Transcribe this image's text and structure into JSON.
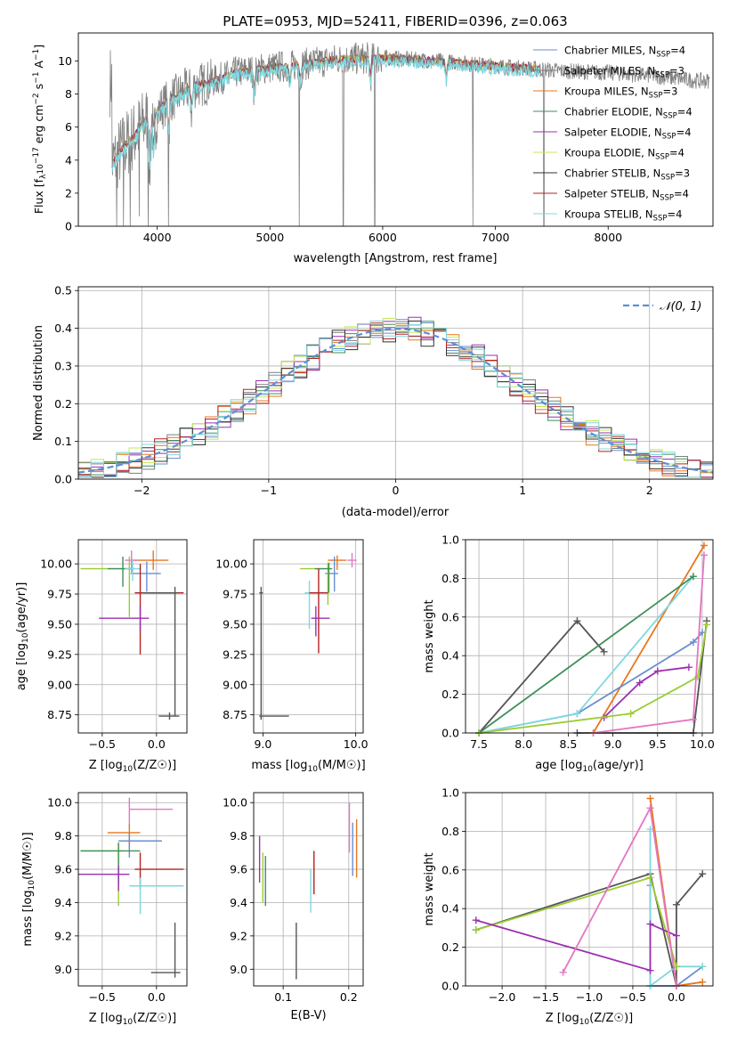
{
  "chart_data": [
    {
      "type": "line",
      "panel": "spectrum",
      "title": "PLATE=0953, MJD=52411, FIBERID=0396, z=0.063",
      "xlabel": "wavelength [Angstrom, rest frame]",
      "ylabel": "Flux [fλ10⁻¹⁷ erg cm⁻² s⁻¹ A⁻¹]",
      "xlim": [
        3300,
        8930
      ],
      "ylim": [
        0,
        11.7
      ],
      "xticks": [
        4000,
        5000,
        6000,
        7000,
        8000
      ],
      "yticks": [
        0,
        2,
        4,
        6,
        8,
        10
      ],
      "legend_position": "right",
      "legend": [
        {
          "label": "Chabrier MILES, N",
          "sub": "SSP",
          "suffix": "=4",
          "color": "#6a8fcf"
        },
        {
          "label": "Salpeter MILES, N",
          "sub": "SSP",
          "suffix": "=3",
          "color": "#7f7f7f"
        },
        {
          "label": "Kroupa MILES, N",
          "sub": "SSP",
          "suffix": "=3",
          "color": "#e8771d"
        },
        {
          "label": "Chabrier ELODIE, N",
          "sub": "SSP",
          "suffix": "=4",
          "color": "#3f8f5a"
        },
        {
          "label": "Salpeter ELODIE, N",
          "sub": "SSP",
          "suffix": "=4",
          "color": "#9b30b0"
        },
        {
          "label": "Kroupa ELODIE, N",
          "sub": "SSP",
          "suffix": "=4",
          "color": "#c6e85a"
        },
        {
          "label": "Chabrier STELIB, N",
          "sub": "SSP",
          "suffix": "=3",
          "color": "#333333"
        },
        {
          "label": "Salpeter STELIB, N",
          "sub": "SSP",
          "suffix": "=4",
          "color": "#b22222"
        },
        {
          "label": "Kroupa STELIB, N",
          "sub": "SSP",
          "suffix": "=4",
          "color": "#7fd8e0"
        }
      ],
      "continuum": {
        "x": [
          3600,
          3700,
          3800,
          3900,
          4000,
          4100,
          4300,
          4500,
          4700,
          5000,
          5300,
          5600,
          6000,
          6500,
          7000,
          7400,
          7600,
          8000,
          8400,
          8800
        ],
        "y": [
          3.8,
          4.8,
          5.5,
          6.4,
          6.9,
          7.6,
          8.4,
          8.8,
          9.3,
          9.6,
          9.8,
          10.1,
          10.2,
          10.0,
          9.7,
          9.5,
          9.4,
          9.3,
          9.1,
          8.8
        ]
      },
      "models_end_wavelength": 7400
    },
    {
      "type": "line",
      "panel": "residual-histogram",
      "xlabel": "(data-model)/error",
      "ylabel": "Normed distribution",
      "xlim": [
        -2.5,
        2.5
      ],
      "ylim": [
        0,
        0.51
      ],
      "xticks": [
        -2,
        -1,
        0,
        1,
        2
      ],
      "yticks": [
        0.0,
        0.1,
        0.2,
        0.3,
        0.4,
        0.5
      ],
      "bin_width": 0.1,
      "grid": true,
      "legend_position": "top-right",
      "legend": [
        {
          "label": "𝒩(0, 1)",
          "color": "#5b8fd6"
        }
      ]
    },
    {
      "type": "scatter",
      "panel": "age-vs-Z",
      "xlabel": "Z [log10(Z/Z☉)]",
      "ylabel": "age  [log10(age/yr)]",
      "xlim": [
        -0.72,
        0.28
      ],
      "ylim": [
        8.6,
        10.2
      ],
      "xticks": [
        -0.5,
        0.0
      ],
      "yticks": [
        8.75,
        9.0,
        9.25,
        9.5,
        9.75,
        10.0
      ],
      "points": [
        {
          "x": -0.03,
          "y": 10.03,
          "xerr": [
            0.2,
            0.14
          ],
          "yerr": [
            0.08,
            0.08
          ],
          "color": "#e8771d"
        },
        {
          "x": -0.09,
          "y": 9.92,
          "xerr": [
            0.15,
            0.13
          ],
          "yerr": [
            0.15,
            0.1
          ],
          "color": "#6a8fcf"
        },
        {
          "x": -0.23,
          "y": 10.03,
          "xerr": [
            0.06,
            0.05
          ],
          "yerr": [
            0.1,
            0.08
          ],
          "color": "#e377c2"
        },
        {
          "x": -0.25,
          "y": 9.96,
          "xerr": [
            0.45,
            0.05
          ],
          "yerr": [
            0.4,
            0.1
          ],
          "color": "#9acd32"
        },
        {
          "x": -0.31,
          "y": 9.96,
          "xerr": [
            0.14,
            0.1
          ],
          "yerr": [
            0.15,
            0.1
          ],
          "color": "#3f8f5a"
        },
        {
          "x": -0.22,
          "y": 9.96,
          "xerr": [
            0.07,
            0.08
          ],
          "yerr": [
            0.1,
            0.08
          ],
          "color": "#7fd8e0"
        },
        {
          "x": -0.15,
          "y": 9.76,
          "xerr": [
            0.05,
            0.4
          ],
          "yerr": [
            0.51,
            0.24
          ],
          "color": "#b22222"
        },
        {
          "x": -0.15,
          "y": 9.55,
          "xerr": [
            0.38,
            0.08
          ],
          "yerr": [
            0.1,
            0.1
          ],
          "color": "#9b30b0"
        },
        {
          "x": 0.17,
          "y": 9.76,
          "xerr": [
            0.3,
            0.02
          ],
          "yerr": [
            1.02,
            0.05
          ],
          "color": "#555555"
        },
        {
          "x": 0.12,
          "y": 8.74,
          "xerr": [
            0.1,
            0.09
          ],
          "yerr": [
            0.03,
            0.03
          ],
          "color": "#555555"
        }
      ]
    },
    {
      "type": "scatter",
      "panel": "age-vs-mass",
      "xlabel": "mass [log10(M/M☉)]",
      "ylabel": "",
      "xlim": [
        8.9,
        10.08
      ],
      "ylim": [
        8.6,
        10.2
      ],
      "xticks": [
        9,
        10
      ],
      "yticks": [
        8.75,
        9.0,
        9.25,
        9.5,
        9.75,
        10.0
      ],
      "points": [
        {
          "x": 9.8,
          "y": 10.03,
          "xerr": [
            0.1,
            0.1
          ],
          "yerr": [
            0.08,
            0.04
          ],
          "color": "#e8771d"
        },
        {
          "x": 9.77,
          "y": 9.92,
          "xerr": [
            0.1,
            0.04
          ],
          "yerr": [
            0.15,
            0.14
          ],
          "color": "#6a8fcf"
        },
        {
          "x": 9.96,
          "y": 10.03,
          "xerr": [
            0.05,
            0.05
          ],
          "yerr": [
            0.06,
            0.06
          ],
          "color": "#e377c2"
        },
        {
          "x": 9.7,
          "y": 9.96,
          "xerr": [
            0.3,
            0.05
          ],
          "yerr": [
            0.3,
            0.05
          ],
          "color": "#9acd32"
        },
        {
          "x": 9.71,
          "y": 9.96,
          "xerr": [
            0.15,
            0.03
          ],
          "yerr": [
            0.2,
            0.05
          ],
          "color": "#3f8f5a"
        },
        {
          "x": 9.5,
          "y": 9.76,
          "xerr": [
            0.05,
            0.1
          ],
          "yerr": [
            0.3,
            0.1
          ],
          "color": "#7fd8e0"
        },
        {
          "x": 9.6,
          "y": 9.76,
          "xerr": [
            0.1,
            0.1
          ],
          "yerr": [
            0.5,
            0.2
          ],
          "color": "#b22222"
        },
        {
          "x": 9.57,
          "y": 9.55,
          "xerr": [
            0.05,
            0.15
          ],
          "yerr": [
            0.15,
            0.1
          ],
          "color": "#9b30b0"
        },
        {
          "x": 8.98,
          "y": 9.76,
          "xerr": [
            0.02,
            0.02
          ],
          "yerr": [
            1.05,
            0.05
          ],
          "color": "#555555"
        },
        {
          "x": 8.98,
          "y": 8.74,
          "xerr": [
            0.02,
            0.3
          ],
          "yerr": [
            0.02,
            0.02
          ],
          "color": "#555555"
        }
      ]
    },
    {
      "type": "line",
      "panel": "mass-weight-vs-age",
      "xlabel": "age  [log10(age/yr)]",
      "ylabel": "mass weight",
      "xlim": [
        7.35,
        10.12
      ],
      "ylim": [
        0,
        1.0
      ],
      "xticks": [
        7.5,
        8.0,
        8.5,
        9.0,
        9.5,
        10.0
      ],
      "yticks": [
        0.0,
        0.2,
        0.4,
        0.6,
        0.8,
        1.0
      ],
      "series": [
        {
          "color": "#555555",
          "x": [
            7.5,
            8.6,
            8.9
          ],
          "y": [
            0.0,
            0.58,
            0.42
          ]
        },
        {
          "color": "#555555",
          "x": [
            8.6,
            9.9,
            10.05
          ],
          "y": [
            0.0,
            0.0,
            0.58
          ]
        },
        {
          "color": "#e8771d",
          "x": [
            8.78,
            10.02
          ],
          "y": [
            0.0,
            0.97
          ]
        },
        {
          "color": "#6a8fcf",
          "x": [
            7.5,
            8.6,
            9.9,
            10.0
          ],
          "y": [
            0.0,
            0.1,
            0.47,
            0.52
          ]
        },
        {
          "color": "#7fd8e0",
          "x": [
            7.5,
            8.6,
            9.9
          ],
          "y": [
            0.0,
            0.1,
            0.81
          ]
        },
        {
          "color": "#3f8f5a",
          "x": [
            7.5,
            9.9
          ],
          "y": [
            0.0,
            0.81
          ]
        },
        {
          "color": "#9b30b0",
          "x": [
            8.9,
            9.3,
            9.5,
            9.85
          ],
          "y": [
            0.08,
            0.26,
            0.32,
            0.34
          ]
        },
        {
          "color": "#9acd32",
          "x": [
            7.5,
            9.2,
            9.95,
            10.05
          ],
          "y": [
            0.0,
            0.1,
            0.29,
            0.56
          ]
        },
        {
          "color": "#e377c2",
          "x": [
            8.78,
            9.9,
            10.02
          ],
          "y": [
            0.0,
            0.07,
            0.92
          ]
        }
      ]
    },
    {
      "type": "scatter",
      "panel": "mass-vs-Z",
      "xlabel": "Z [log10(Z/Z☉)]",
      "ylabel": "mass [log10(M/M☉)]",
      "xlim": [
        -0.72,
        0.28
      ],
      "ylim": [
        8.9,
        10.06
      ],
      "xticks": [
        -0.5,
        0.0
      ],
      "yticks": [
        9.0,
        9.2,
        9.4,
        9.6,
        9.8,
        10.0
      ],
      "points": [
        {
          "x": -0.25,
          "y": 9.96,
          "xerr": [
            0.0,
            0.4
          ],
          "yerr": [
            0.1,
            0.07
          ],
          "color": "#e377c2"
        },
        {
          "x": -0.25,
          "y": 9.82,
          "xerr": [
            0.2,
            0.1
          ],
          "yerr": [
            0.1,
            0.05
          ],
          "color": "#e8771d"
        },
        {
          "x": -0.25,
          "y": 9.77,
          "xerr": [
            0.1,
            0.3
          ],
          "yerr": [
            0.1,
            0.05
          ],
          "color": "#6a8fcf"
        },
        {
          "x": -0.35,
          "y": 9.71,
          "xerr": [
            0.35,
            0.05
          ],
          "yerr": [
            0.33,
            0.05
          ],
          "color": "#9acd32"
        },
        {
          "x": -0.35,
          "y": 9.71,
          "xerr": [
            0.35,
            0.2
          ],
          "yerr": [
            0.2,
            0.05
          ],
          "color": "#3f8f5a"
        },
        {
          "x": -0.15,
          "y": 9.6,
          "xerr": [
            0.05,
            0.4
          ],
          "yerr": [
            0.12,
            0.1
          ],
          "color": "#b22222"
        },
        {
          "x": -0.35,
          "y": 9.57,
          "xerr": [
            0.38,
            0.1
          ],
          "yerr": [
            0.1,
            0.05
          ],
          "color": "#9b30b0"
        },
        {
          "x": -0.15,
          "y": 9.5,
          "xerr": [
            0.1,
            0.4
          ],
          "yerr": [
            0.17,
            0.05
          ],
          "color": "#7fd8e0"
        },
        {
          "x": 0.17,
          "y": 8.98,
          "xerr": [
            0.22,
            0.05
          ],
          "yerr": [
            0.03,
            0.3
          ],
          "color": "#555555"
        }
      ]
    },
    {
      "type": "scatter",
      "panel": "mass-vs-EBV",
      "xlabel": "E(B-V)",
      "ylabel": "",
      "xlim": [
        0.055,
        0.222
      ],
      "ylim": [
        8.9,
        10.06
      ],
      "xticks": [
        0.1,
        0.2
      ],
      "yticks": [
        9.0,
        9.2,
        9.4,
        9.6,
        9.8,
        10.0
      ],
      "points": [
        {
          "x": 0.201,
          "y": 9.84,
          "xerr": [
            0,
            0
          ],
          "yerr": [
            0.14,
            0.16
          ],
          "color": "#e377c2"
        },
        {
          "x": 0.212,
          "y": 9.75,
          "xerr": [
            0,
            0
          ],
          "yerr": [
            0.2,
            0.15
          ],
          "color": "#e8771d"
        },
        {
          "x": 0.206,
          "y": 9.71,
          "xerr": [
            0,
            0
          ],
          "yerr": [
            0.15,
            0.17
          ],
          "color": "#6a8fcf"
        },
        {
          "x": 0.064,
          "y": 9.65,
          "xerr": [
            0,
            0
          ],
          "yerr": [
            0.13,
            0.15
          ],
          "color": "#9b30b0"
        },
        {
          "x": 0.069,
          "y": 9.6,
          "xerr": [
            0,
            0
          ],
          "yerr": [
            0.2,
            0.1
          ],
          "color": "#9acd32"
        },
        {
          "x": 0.073,
          "y": 9.55,
          "xerr": [
            0,
            0
          ],
          "yerr": [
            0.17,
            0.13
          ],
          "color": "#3f8f5a"
        },
        {
          "x": 0.147,
          "y": 9.57,
          "xerr": [
            0,
            0
          ],
          "yerr": [
            0.12,
            0.14
          ],
          "color": "#b22222"
        },
        {
          "x": 0.142,
          "y": 9.48,
          "xerr": [
            0,
            0
          ],
          "yerr": [
            0.14,
            0.12
          ],
          "color": "#7fd8e0"
        },
        {
          "x": 0.12,
          "y": 9.12,
          "xerr": [
            0,
            0
          ],
          "yerr": [
            0.18,
            0.16
          ],
          "color": "#555555"
        }
      ]
    },
    {
      "type": "line",
      "panel": "mass-weight-vs-Z",
      "xlabel": "Z [log10(Z/Z☉)]",
      "ylabel": "mass weight",
      "xlim": [
        -2.42,
        0.42
      ],
      "ylim": [
        0,
        1.0
      ],
      "xticks": [
        -2.0,
        -1.5,
        -1.0,
        -0.5,
        0.0
      ],
      "yticks": [
        0.0,
        0.2,
        0.4,
        0.6,
        0.8,
        1.0
      ],
      "series": [
        {
          "color": "#555555",
          "x": [
            -2.3,
            -0.3,
            0.0,
            0.0,
            0.3
          ],
          "y": [
            0.29,
            0.58,
            0.0,
            0.42,
            0.58
          ]
        },
        {
          "color": "#6a8fcf",
          "x": [
            -0.3,
            -0.3,
            0.0,
            0.3
          ],
          "y": [
            0.52,
            0.0,
            0.0,
            0.1
          ]
        },
        {
          "color": "#7fd8e0",
          "x": [
            -0.3,
            -0.3,
            0.0,
            0.3
          ],
          "y": [
            0.81,
            0.0,
            0.1,
            0.1
          ]
        },
        {
          "color": "#e8771d",
          "x": [
            -0.3,
            0.0,
            0.3
          ],
          "y": [
            0.97,
            0.0,
            0.02
          ]
        },
        {
          "color": "#9acd32",
          "x": [
            -2.3,
            -0.3,
            0.0
          ],
          "y": [
            0.29,
            0.56,
            0.1
          ]
        },
        {
          "color": "#9b30b0",
          "x": [
            -2.3,
            -0.3,
            -0.3,
            0.0
          ],
          "y": [
            0.34,
            0.08,
            0.32,
            0.26
          ]
        },
        {
          "color": "#e377c2",
          "x": [
            -1.3,
            -0.3,
            0.0
          ],
          "y": [
            0.07,
            0.92,
            0.0
          ]
        }
      ]
    }
  ]
}
